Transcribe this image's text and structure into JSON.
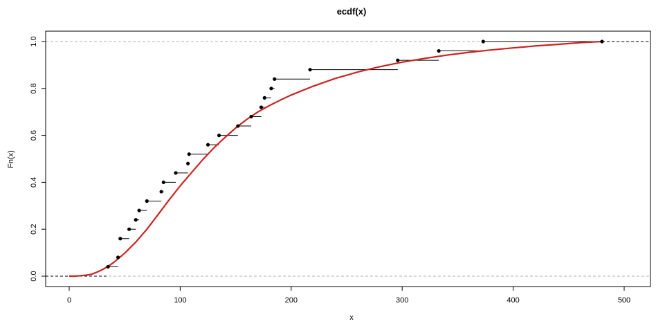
{
  "chart_data": {
    "type": "line",
    "title": "ecdf(x)",
    "xlabel": "x",
    "ylabel": "Fn(x)",
    "xlim": [
      0,
      500
    ],
    "ylim": [
      0,
      1
    ],
    "x_ticks": [
      0,
      100,
      200,
      300,
      400,
      500
    ],
    "x_tick_labels": [
      "0",
      "100",
      "200",
      "300",
      "400",
      "500"
    ],
    "y_ticks": [
      0,
      0.2,
      0.4,
      0.6,
      0.8,
      1
    ],
    "y_tick_labels": [
      "0.0",
      "0.2",
      "0.4",
      "0.6",
      "0.8",
      "1.0"
    ],
    "grid": false,
    "reference_lines_y": [
      0,
      1
    ],
    "series": [
      {
        "type": "step",
        "x": [
          35,
          44,
          46,
          54,
          60,
          63,
          70,
          83,
          85,
          96,
          107,
          108,
          125,
          135,
          152,
          164,
          173,
          176,
          182,
          185,
          217,
          296,
          333,
          373,
          480
        ],
        "y": [
          0.04,
          0.08,
          0.16,
          0.2,
          0.24,
          0.28,
          0.32,
          0.36,
          0.4,
          0.44,
          0.48,
          0.52,
          0.56,
          0.6,
          0.64,
          0.68,
          0.72,
          0.76,
          0.8,
          0.84,
          0.88,
          0.92,
          0.96,
          1.0,
          1.0
        ],
        "color": "#000000"
      },
      {
        "type": "line",
        "x": [
          0,
          5,
          10,
          15,
          20,
          25,
          30,
          35,
          40,
          50,
          60,
          70,
          80,
          90,
          100,
          110,
          120,
          130,
          140,
          150,
          160,
          170,
          180,
          190,
          200,
          220,
          240,
          260,
          280,
          300,
          320,
          340,
          360,
          380,
          400,
          420,
          440,
          460,
          480
        ],
        "y": [
          0,
          0,
          0.002,
          0.004,
          0.008,
          0.017,
          0.028,
          0.042,
          0.058,
          0.098,
          0.145,
          0.2,
          0.262,
          0.325,
          0.385,
          0.44,
          0.495,
          0.545,
          0.59,
          0.632,
          0.668,
          0.7,
          0.726,
          0.75,
          0.772,
          0.81,
          0.843,
          0.87,
          0.893,
          0.912,
          0.928,
          0.942,
          0.954,
          0.964,
          0.973,
          0.981,
          0.988,
          0.995,
          1.0
        ],
        "color": "#cc2222"
      }
    ]
  }
}
